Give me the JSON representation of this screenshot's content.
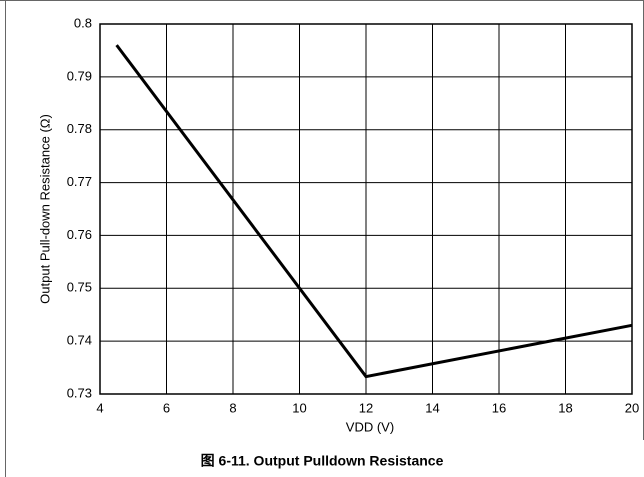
{
  "chart_data": {
    "type": "line",
    "title": "图 6-11. Output Pulldown Resistance",
    "xlabel": "VDD (V)",
    "ylabel": "Output Pull-down Resistance (Ω)",
    "x": [
      4.5,
      12,
      20
    ],
    "series": [
      {
        "color": "#000000",
        "values": [
          0.796,
          0.7333,
          0.743
        ]
      }
    ],
    "xlim": [
      4,
      20
    ],
    "xticks": [
      4,
      6,
      8,
      10,
      12,
      14,
      16,
      18,
      20
    ],
    "ylim": [
      0.73,
      0.8
    ],
    "yticks": [
      0.73,
      0.74,
      0.75,
      0.76,
      0.77,
      0.78,
      0.79,
      0.8
    ],
    "grid": true
  }
}
